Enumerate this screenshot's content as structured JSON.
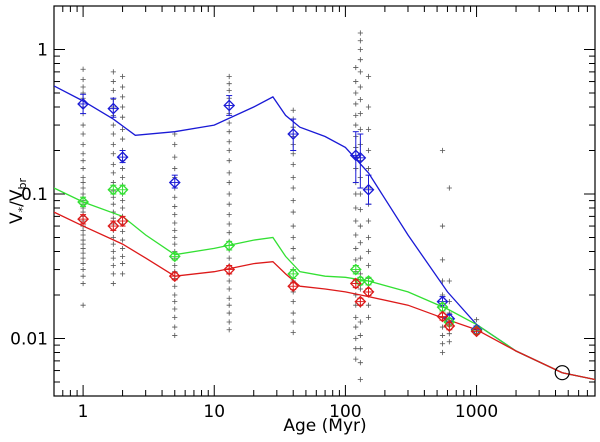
{
  "chart_data": {
    "type": "scatter",
    "title": "",
    "xlabel": "Age (Myr)",
    "ylabel_main": "V",
    "ylabel_sub1": "*",
    "ylabel_den": "/V",
    "ylabel_sub2": "br",
    "x_scale": "log",
    "y_scale": "log",
    "xlim": [
      0.6,
      8000
    ],
    "ylim": [
      0.004,
      2.0
    ],
    "x_ticks": [
      {
        "value": 1,
        "label": "1"
      },
      {
        "value": 10,
        "label": "10"
      },
      {
        "value": 100,
        "label": "100"
      },
      {
        "value": 1000,
        "label": "1000"
      }
    ],
    "y_ticks": [
      {
        "value": 0.01,
        "label": "0.01"
      },
      {
        "value": 0.1,
        "label": "0.1"
      },
      {
        "value": 1,
        "label": "1"
      }
    ],
    "grid": false,
    "legend": "none",
    "colors": {
      "blue": "#1a1ad6",
      "green": "#33e033",
      "red": "#dd1a1a",
      "points": "#555555"
    },
    "series": [
      {
        "color": "blue",
        "markers": [
          {
            "x": 1.0,
            "y": 0.42,
            "lo": 0.36,
            "hi": 0.49
          },
          {
            "x": 1.7,
            "y": 0.39,
            "lo": 0.34,
            "hi": 0.46
          },
          {
            "x": 2.0,
            "y": 0.18,
            "lo": 0.165,
            "hi": 0.2
          },
          {
            "x": 5.0,
            "y": 0.12,
            "lo": 0.11,
            "hi": 0.135
          },
          {
            "x": 13.0,
            "y": 0.41,
            "lo": 0.35,
            "hi": 0.48
          },
          {
            "x": 40.0,
            "y": 0.26,
            "lo": 0.2,
            "hi": 0.33
          },
          {
            "x": 120.0,
            "y": 0.185,
            "lo": 0.12,
            "hi": 0.27
          },
          {
            "x": 130.0,
            "y": 0.178,
            "lo": 0.11,
            "hi": 0.26
          },
          {
            "x": 150.0,
            "y": 0.107,
            "lo": 0.085,
            "hi": 0.135
          },
          {
            "x": 550.0,
            "y": 0.018,
            "lo": 0.0165,
            "hi": 0.0195
          },
          {
            "x": 620.0,
            "y": 0.0137,
            "lo": 0.0128,
            "hi": 0.0147
          },
          {
            "x": 1000.0,
            "y": 0.0115,
            "lo": 0.0108,
            "hi": 0.0122
          }
        ],
        "curve": [
          [
            0.6,
            0.56
          ],
          [
            1,
            0.44
          ],
          [
            1.7,
            0.33
          ],
          [
            2.5,
            0.255
          ],
          [
            5,
            0.27
          ],
          [
            10,
            0.3
          ],
          [
            20,
            0.4
          ],
          [
            28,
            0.47
          ],
          [
            35,
            0.35
          ],
          [
            45,
            0.29
          ],
          [
            70,
            0.25
          ],
          [
            100,
            0.21
          ],
          [
            150,
            0.14
          ],
          [
            300,
            0.052
          ],
          [
            600,
            0.021
          ],
          [
            1000,
            0.0125
          ],
          [
            2000,
            0.0082
          ],
          [
            4500,
            0.0058
          ],
          [
            8000,
            0.0052
          ]
        ]
      },
      {
        "color": "green",
        "markers": [
          {
            "x": 1.0,
            "y": 0.088,
            "lo": 0.082,
            "hi": 0.095
          },
          {
            "x": 1.7,
            "y": 0.107,
            "lo": 0.1,
            "hi": 0.115
          },
          {
            "x": 2.0,
            "y": 0.107,
            "lo": 0.1,
            "hi": 0.115
          },
          {
            "x": 5.0,
            "y": 0.037,
            "lo": 0.035,
            "hi": 0.039
          },
          {
            "x": 13.0,
            "y": 0.044,
            "lo": 0.041,
            "hi": 0.047
          },
          {
            "x": 40.0,
            "y": 0.028,
            "lo": 0.026,
            "hi": 0.03
          },
          {
            "x": 120.0,
            "y": 0.03,
            "lo": 0.028,
            "hi": 0.032
          },
          {
            "x": 130.0,
            "y": 0.025,
            "lo": 0.0235,
            "hi": 0.0265
          },
          {
            "x": 150.0,
            "y": 0.025,
            "lo": 0.0235,
            "hi": 0.0265
          },
          {
            "x": 550.0,
            "y": 0.0165,
            "lo": 0.0155,
            "hi": 0.0175
          },
          {
            "x": 620.0,
            "y": 0.013,
            "lo": 0.0122,
            "hi": 0.0138
          },
          {
            "x": 1000.0,
            "y": 0.0113,
            "lo": 0.0108,
            "hi": 0.0118
          }
        ],
        "curve": [
          [
            0.6,
            0.11
          ],
          [
            1,
            0.088
          ],
          [
            2,
            0.07
          ],
          [
            3,
            0.052
          ],
          [
            5,
            0.038
          ],
          [
            10,
            0.042
          ],
          [
            20,
            0.048
          ],
          [
            28,
            0.05
          ],
          [
            35,
            0.037
          ],
          [
            45,
            0.029
          ],
          [
            70,
            0.027
          ],
          [
            100,
            0.0265
          ],
          [
            150,
            0.025
          ],
          [
            300,
            0.021
          ],
          [
            600,
            0.016
          ],
          [
            1000,
            0.0125
          ],
          [
            2000,
            0.0082
          ],
          [
            4500,
            0.0058
          ],
          [
            8000,
            0.0052
          ]
        ]
      },
      {
        "color": "red",
        "markers": [
          {
            "x": 1.0,
            "y": 0.067,
            "lo": 0.062,
            "hi": 0.072
          },
          {
            "x": 1.7,
            "y": 0.06,
            "lo": 0.056,
            "hi": 0.065
          },
          {
            "x": 2.0,
            "y": 0.065,
            "lo": 0.06,
            "hi": 0.07
          },
          {
            "x": 5.0,
            "y": 0.027,
            "lo": 0.0255,
            "hi": 0.0285
          },
          {
            "x": 13.0,
            "y": 0.03,
            "lo": 0.028,
            "hi": 0.032
          },
          {
            "x": 40.0,
            "y": 0.023,
            "lo": 0.0218,
            "hi": 0.0243
          },
          {
            "x": 120.0,
            "y": 0.024,
            "lo": 0.0225,
            "hi": 0.0255
          },
          {
            "x": 130.0,
            "y": 0.018,
            "lo": 0.017,
            "hi": 0.019
          },
          {
            "x": 150.0,
            "y": 0.021,
            "lo": 0.0198,
            "hi": 0.0222
          },
          {
            "x": 550.0,
            "y": 0.0142,
            "lo": 0.0134,
            "hi": 0.015
          },
          {
            "x": 620.0,
            "y": 0.0122,
            "lo": 0.0115,
            "hi": 0.0129
          },
          {
            "x": 1000.0,
            "y": 0.0112,
            "lo": 0.0107,
            "hi": 0.0117
          }
        ],
        "curve": [
          [
            0.6,
            0.075
          ],
          [
            1,
            0.06
          ],
          [
            2,
            0.045
          ],
          [
            3,
            0.036
          ],
          [
            5,
            0.027
          ],
          [
            10,
            0.029
          ],
          [
            20,
            0.033
          ],
          [
            28,
            0.034
          ],
          [
            35,
            0.028
          ],
          [
            45,
            0.023
          ],
          [
            70,
            0.022
          ],
          [
            100,
            0.021
          ],
          [
            150,
            0.0195
          ],
          [
            300,
            0.017
          ],
          [
            600,
            0.0135
          ],
          [
            1000,
            0.0115
          ],
          [
            2000,
            0.0082
          ],
          [
            4500,
            0.0058
          ],
          [
            8000,
            0.0052
          ]
        ]
      }
    ],
    "scatter_points": [
      {
        "x": 1.0,
        "y": [
          0.73,
          0.62,
          0.55,
          0.5,
          0.46,
          0.4,
          0.36,
          0.3,
          0.26,
          0.22,
          0.19,
          0.17,
          0.15,
          0.13,
          0.12,
          0.11,
          0.1,
          0.095,
          0.09,
          0.085,
          0.08,
          0.075,
          0.07,
          0.065,
          0.06,
          0.056,
          0.052,
          0.048,
          0.045,
          0.042,
          0.039,
          0.036,
          0.033,
          0.03,
          0.027,
          0.024,
          0.017
        ]
      },
      {
        "x": 1.7,
        "y": [
          0.7,
          0.6,
          0.52,
          0.45,
          0.4,
          0.35,
          0.3,
          0.26,
          0.22,
          0.19,
          0.16,
          0.14,
          0.12,
          0.105,
          0.095,
          0.085,
          0.075,
          0.068,
          0.062,
          0.056,
          0.05,
          0.045,
          0.04,
          0.036,
          0.032,
          0.028,
          0.024
        ]
      },
      {
        "x": 2.0,
        "y": [
          0.65,
          0.55,
          0.47,
          0.4,
          0.34,
          0.28,
          0.24,
          0.2,
          0.17,
          0.15,
          0.13,
          0.115,
          0.1,
          0.09,
          0.08,
          0.07,
          0.062,
          0.055,
          0.048,
          0.042,
          0.037,
          0.033,
          0.028
        ]
      },
      {
        "x": 5.0,
        "y": [
          0.26,
          0.22,
          0.18,
          0.15,
          0.13,
          0.11,
          0.095,
          0.082,
          0.072,
          0.063,
          0.056,
          0.05,
          0.045,
          0.04,
          0.036,
          0.032,
          0.029,
          0.026,
          0.023,
          0.02,
          0.018,
          0.016,
          0.014,
          0.012,
          0.0105
        ]
      },
      {
        "x": 13.0,
        "y": [
          0.65,
          0.58,
          0.52,
          0.46,
          0.41,
          0.36,
          0.31,
          0.27,
          0.23,
          0.2,
          0.17,
          0.14,
          0.12,
          0.1,
          0.085,
          0.072,
          0.062,
          0.054,
          0.047,
          0.041,
          0.036,
          0.032,
          0.028,
          0.025,
          0.022,
          0.019,
          0.017,
          0.015,
          0.013,
          0.0115
        ]
      },
      {
        "x": 40.0,
        "y": [
          0.38,
          0.33,
          0.29,
          0.25,
          0.22,
          0.19,
          0.16,
          0.13,
          0.11,
          0.09,
          0.075,
          0.06,
          0.05,
          0.042,
          0.036,
          0.03,
          0.025,
          0.021,
          0.018,
          0.015,
          0.013,
          0.011
        ]
      },
      {
        "x": 120.0,
        "y": [
          0.75,
          0.6,
          0.5,
          0.42,
          0.35,
          0.3,
          0.25,
          0.21,
          0.18,
          0.15,
          0.12,
          0.1,
          0.08,
          0.065,
          0.052,
          0.042,
          0.035,
          0.029,
          0.024,
          0.02,
          0.017,
          0.014,
          0.012,
          0.01,
          0.0085,
          0.0072
        ]
      },
      {
        "x": 130.0,
        "y": [
          1.3,
          1.15,
          1.0,
          0.85,
          0.7,
          0.55,
          0.45,
          0.36,
          0.28,
          0.22,
          0.17,
          0.13,
          0.1,
          0.078,
          0.06,
          0.046,
          0.036,
          0.028,
          0.022,
          0.017,
          0.013,
          0.0105,
          0.0085,
          0.0068,
          0.0052
        ]
      },
      {
        "x": 150.0,
        "y": [
          0.65,
          0.4,
          0.28,
          0.2,
          0.15,
          0.11,
          0.085,
          0.065,
          0.05,
          0.04,
          0.032,
          0.026,
          0.021,
          0.017,
          0.014
        ]
      },
      {
        "x": 550.0,
        "y": [
          0.2,
          0.06,
          0.035,
          0.025,
          0.02,
          0.0165,
          0.014,
          0.012,
          0.0105,
          0.0092,
          0.008
        ]
      },
      {
        "x": 620.0,
        "y": [
          0.11,
          0.025,
          0.018,
          0.015,
          0.0125,
          0.0108,
          0.0095
        ]
      },
      {
        "x": 1000.0,
        "y": [
          0.0135,
          0.012,
          0.0108
        ]
      }
    ],
    "open_circle": {
      "x": 4500,
      "y": 0.0058
    }
  }
}
